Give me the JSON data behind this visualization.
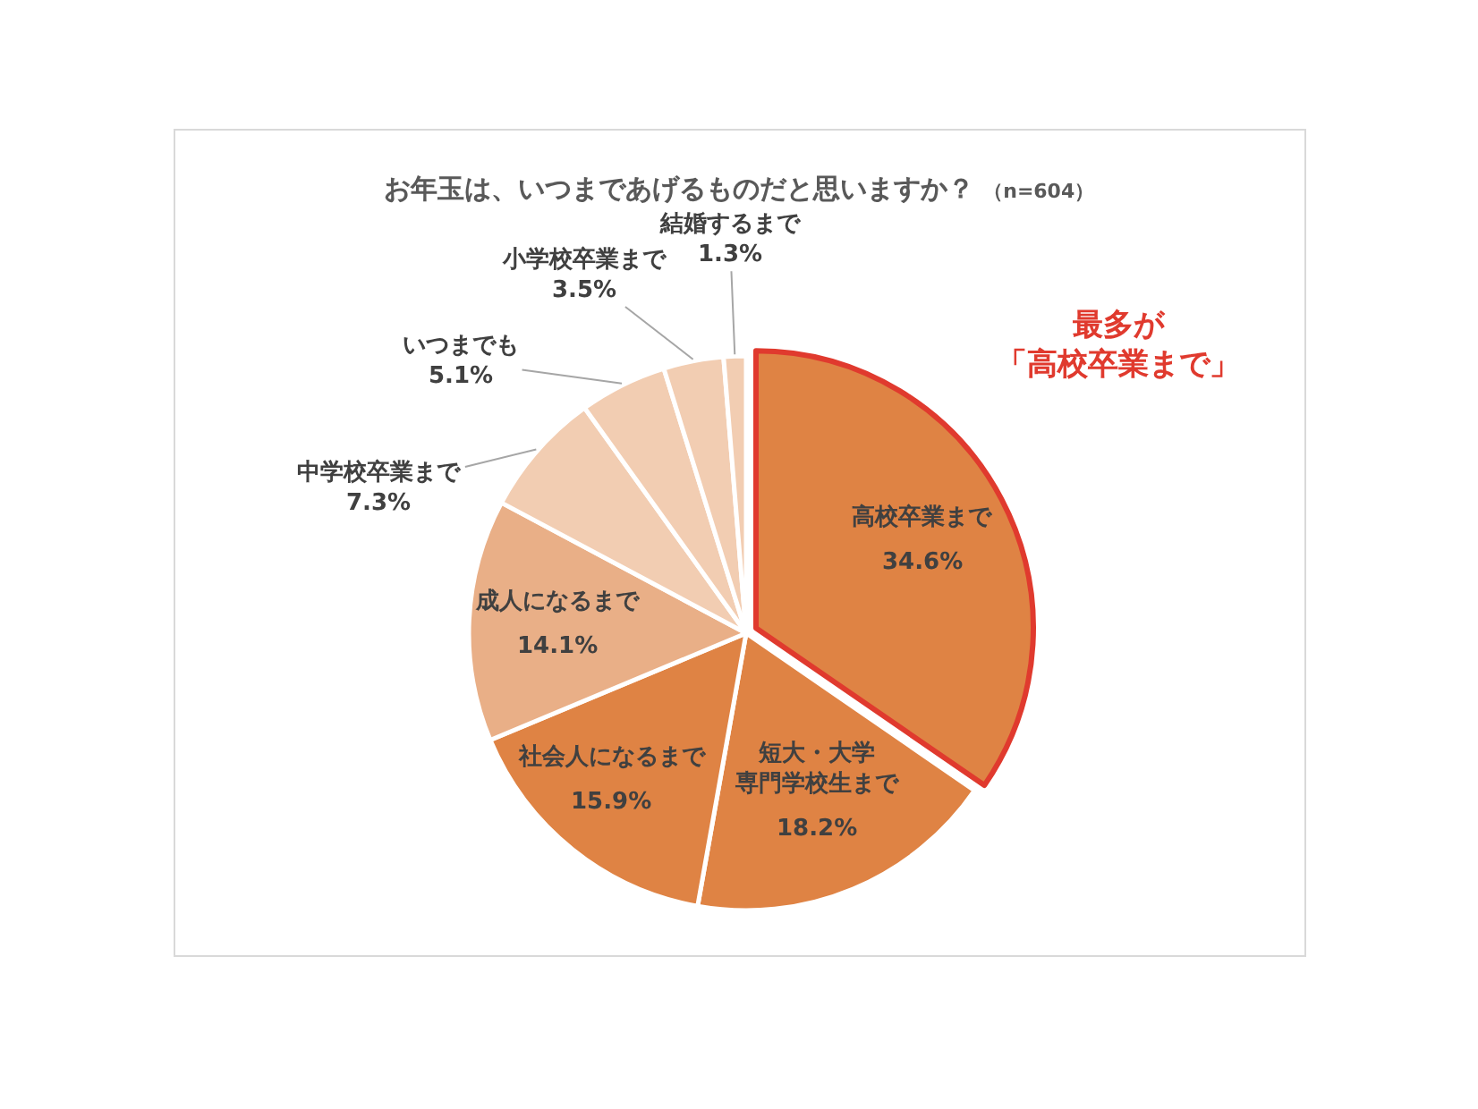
{
  "chart_data": {
    "type": "pie",
    "title": "お年玉は、いつまであげるものだと思いますか？",
    "subtitle": "（n=604）",
    "categories": [
      "高校卒業まで",
      "短大・大学専門学校生まで",
      "社会人になるまで",
      "成人になるまで",
      "中学校卒業まで",
      "いつまでも",
      "小学校卒業まで",
      "結婚するまで"
    ],
    "values": [
      34.6,
      18.2,
      15.9,
      14.1,
      7.3,
      5.1,
      3.5,
      1.3
    ],
    "value_labels": [
      "34.6%",
      "18.2%",
      "15.9%",
      "14.1%",
      "7.3%",
      "5.1%",
      "3.5%",
      "1.3%"
    ],
    "colors": [
      "#df8344",
      "#df8344",
      "#df8344",
      "#e9af87",
      "#f2cdb2",
      "#f2cdb2",
      "#f2cdb2",
      "#f2cdb2"
    ],
    "annotations": [
      {
        "text": "最多が「高校卒業まで」",
        "x": "高校卒業まで"
      }
    ]
  }
}
